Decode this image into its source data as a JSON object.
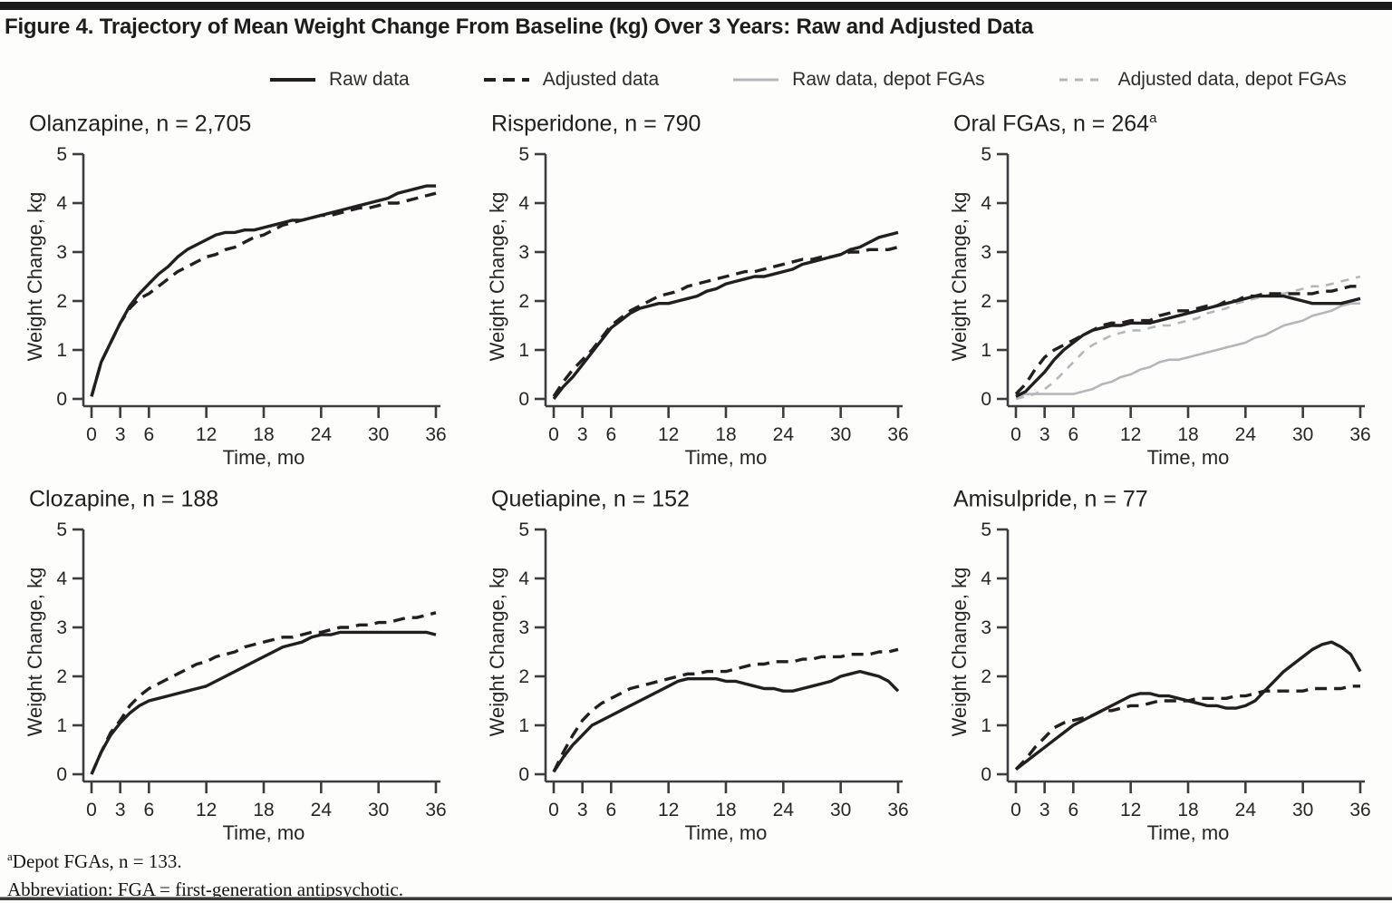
{
  "page": {
    "title": "Figure 4. Trajectory of Mean Weight Change From Baseline (kg) Over 3 Years: Raw and Adjusted Data",
    "footnotes": [
      {
        "sup": "a",
        "text": "Depot FGAs, n = 133."
      },
      {
        "sup": "",
        "text": "Abbreviation: FGA = first-generation antipsychotic."
      }
    ]
  },
  "colors": {
    "line_black": "#231f20",
    "line_gray": "#b4b7b9",
    "axis": "#3c3d3f"
  },
  "legend": [
    {
      "label": "Raw data",
      "color": "#231f20",
      "dashed": false
    },
    {
      "label": "Adjusted data",
      "color": "#231f20",
      "dashed": true
    },
    {
      "label": "Raw data, depot FGAs",
      "color": "#b4b7b9",
      "dashed": false
    },
    {
      "label": "Adjusted data, depot FGAs",
      "color": "#b4b7b9",
      "dashed": true
    }
  ],
  "chart_data": {
    "type": "line",
    "xlabel": "Time, mo",
    "ylabel": "Weight Change, kg",
    "xlim": [
      0,
      36
    ],
    "ylim": [
      0,
      5
    ],
    "xticks": [
      0,
      3,
      6,
      12,
      18,
      24,
      30,
      36
    ],
    "yticks": [
      0,
      1,
      2,
      3,
      4,
      5
    ],
    "grid": false,
    "x_months": [
      0,
      1,
      2,
      3,
      4,
      5,
      6,
      7,
      8,
      9,
      10,
      11,
      12,
      13,
      14,
      15,
      16,
      17,
      18,
      19,
      20,
      21,
      22,
      23,
      24,
      25,
      26,
      27,
      28,
      29,
      30,
      31,
      32,
      33,
      34,
      35,
      36
    ],
    "charts": [
      {
        "id": "olanzapine",
        "title": "Olanzapine, n = 2,705",
        "title_sup": "",
        "series": [
          {
            "name": "Raw data",
            "color": "#231f20",
            "dashed": false,
            "values": [
              0.05,
              0.75,
              1.15,
              1.55,
              1.9,
              2.15,
              2.35,
              2.55,
              2.7,
              2.9,
              3.05,
              3.15,
              3.25,
              3.35,
              3.4,
              3.4,
              3.45,
              3.45,
              3.5,
              3.55,
              3.6,
              3.65,
              3.65,
              3.7,
              3.75,
              3.8,
              3.85,
              3.9,
              3.95,
              4.0,
              4.05,
              4.1,
              4.2,
              4.25,
              4.3,
              4.35,
              4.35
            ]
          },
          {
            "name": "Adjusted data",
            "color": "#231f20",
            "dashed": true,
            "values": [
              0.05,
              0.75,
              1.15,
              1.55,
              1.85,
              2.05,
              2.15,
              2.3,
              2.45,
              2.6,
              2.7,
              2.8,
              2.9,
              2.95,
              3.05,
              3.1,
              3.2,
              3.3,
              3.35,
              3.45,
              3.55,
              3.6,
              3.65,
              3.7,
              3.75,
              3.75,
              3.8,
              3.85,
              3.9,
              3.9,
              3.95,
              4.0,
              4.0,
              4.05,
              4.1,
              4.15,
              4.2
            ]
          }
        ]
      },
      {
        "id": "risperidone",
        "title": "Risperidone, n = 790",
        "title_sup": "",
        "series": [
          {
            "name": "Raw data",
            "color": "#231f20",
            "dashed": false,
            "values": [
              0,
              0.25,
              0.45,
              0.7,
              0.95,
              1.2,
              1.45,
              1.6,
              1.75,
              1.85,
              1.9,
              1.95,
              1.95,
              2.0,
              2.05,
              2.1,
              2.2,
              2.25,
              2.35,
              2.4,
              2.45,
              2.5,
              2.5,
              2.55,
              2.6,
              2.65,
              2.75,
              2.8,
              2.85,
              2.9,
              2.95,
              3.05,
              3.1,
              3.2,
              3.3,
              3.35,
              3.4
            ]
          },
          {
            "name": "Adjusted data",
            "color": "#231f20",
            "dashed": true,
            "values": [
              0.05,
              0.35,
              0.6,
              0.8,
              1.0,
              1.25,
              1.5,
              1.65,
              1.8,
              1.9,
              2.0,
              2.1,
              2.15,
              2.2,
              2.3,
              2.35,
              2.4,
              2.45,
              2.5,
              2.55,
              2.6,
              2.6,
              2.65,
              2.7,
              2.75,
              2.8,
              2.85,
              2.85,
              2.9,
              2.9,
              2.95,
              3.0,
              3.0,
              3.05,
              3.05,
              3.05,
              3.1
            ]
          }
        ]
      },
      {
        "id": "oral-fgas",
        "title": "Oral FGAs, n = 264",
        "title_sup": "a",
        "series": [
          {
            "name": "Raw data",
            "color": "#231f20",
            "dashed": false,
            "values": [
              0.05,
              0.15,
              0.35,
              0.55,
              0.8,
              1.0,
              1.15,
              1.3,
              1.4,
              1.45,
              1.5,
              1.5,
              1.55,
              1.55,
              1.55,
              1.6,
              1.65,
              1.7,
              1.75,
              1.8,
              1.85,
              1.9,
              1.95,
              2.0,
              2.05,
              2.1,
              2.1,
              2.1,
              2.1,
              2.05,
              2.0,
              1.95,
              1.95,
              1.95,
              1.95,
              2.0,
              2.05
            ]
          },
          {
            "name": "Adjusted data",
            "color": "#231f20",
            "dashed": true,
            "values": [
              0.1,
              0.3,
              0.6,
              0.85,
              1.0,
              1.1,
              1.2,
              1.3,
              1.4,
              1.5,
              1.55,
              1.55,
              1.6,
              1.6,
              1.6,
              1.7,
              1.75,
              1.8,
              1.8,
              1.85,
              1.9,
              1.9,
              2.0,
              2.0,
              2.1,
              2.1,
              2.15,
              2.15,
              2.15,
              2.15,
              2.15,
              2.15,
              2.2,
              2.2,
              2.25,
              2.3,
              2.3
            ]
          },
          {
            "name": "Raw data, depot FGAs",
            "color": "#b4b7b9",
            "dashed": false,
            "values": [
              0.05,
              0.1,
              0.1,
              0.1,
              0.1,
              0.1,
              0.1,
              0.15,
              0.2,
              0.3,
              0.35,
              0.45,
              0.5,
              0.6,
              0.65,
              0.75,
              0.8,
              0.8,
              0.85,
              0.9,
              0.95,
              1.0,
              1.05,
              1.1,
              1.15,
              1.25,
              1.3,
              1.4,
              1.5,
              1.55,
              1.6,
              1.7,
              1.75,
              1.8,
              1.9,
              1.95,
              1.95
            ]
          },
          {
            "name": "Adjusted data, depot FGAs",
            "color": "#b4b7b9",
            "dashed": true,
            "values": [
              0,
              0.05,
              0.1,
              0.2,
              0.35,
              0.55,
              0.75,
              0.95,
              1.1,
              1.2,
              1.3,
              1.35,
              1.4,
              1.4,
              1.45,
              1.5,
              1.5,
              1.55,
              1.6,
              1.65,
              1.75,
              1.8,
              1.85,
              1.95,
              2.0,
              2.05,
              2.1,
              2.15,
              2.15,
              2.2,
              2.25,
              2.3,
              2.3,
              2.35,
              2.4,
              2.45,
              2.5
            ]
          }
        ]
      },
      {
        "id": "clozapine",
        "title": "Clozapine, n = 188",
        "title_sup": "",
        "series": [
          {
            "name": "Raw data",
            "color": "#231f20",
            "dashed": false,
            "values": [
              0,
              0.45,
              0.8,
              1.05,
              1.25,
              1.4,
              1.5,
              1.55,
              1.6,
              1.65,
              1.7,
              1.75,
              1.8,
              1.9,
              2.0,
              2.1,
              2.2,
              2.3,
              2.4,
              2.5,
              2.6,
              2.65,
              2.7,
              2.8,
              2.85,
              2.85,
              2.9,
              2.9,
              2.9,
              2.9,
              2.9,
              2.9,
              2.9,
              2.9,
              2.9,
              2.9,
              2.85
            ]
          },
          {
            "name": "Adjusted data",
            "color": "#231f20",
            "dashed": true,
            "values": [
              0,
              0.45,
              0.85,
              1.1,
              1.4,
              1.6,
              1.75,
              1.85,
              1.95,
              2.05,
              2.15,
              2.25,
              2.3,
              2.4,
              2.45,
              2.5,
              2.6,
              2.65,
              2.7,
              2.75,
              2.8,
              2.8,
              2.85,
              2.9,
              2.9,
              2.95,
              3.0,
              3.0,
              3.05,
              3.05,
              3.1,
              3.1,
              3.15,
              3.2,
              3.2,
              3.25,
              3.3
            ]
          }
        ]
      },
      {
        "id": "quetiapine",
        "title": "Quetiapine, n = 152",
        "title_sup": "",
        "series": [
          {
            "name": "Raw data",
            "color": "#231f20",
            "dashed": false,
            "values": [
              0.05,
              0.35,
              0.6,
              0.8,
              1.0,
              1.1,
              1.2,
              1.3,
              1.4,
              1.5,
              1.6,
              1.7,
              1.8,
              1.9,
              1.95,
              1.95,
              1.95,
              1.95,
              1.9,
              1.9,
              1.85,
              1.8,
              1.75,
              1.75,
              1.7,
              1.7,
              1.75,
              1.8,
              1.85,
              1.9,
              2.0,
              2.05,
              2.1,
              2.05,
              2.0,
              1.9,
              1.7
            ]
          },
          {
            "name": "Adjusted data",
            "color": "#231f20",
            "dashed": true,
            "values": [
              0.05,
              0.45,
              0.8,
              1.1,
              1.3,
              1.45,
              1.55,
              1.65,
              1.75,
              1.8,
              1.85,
              1.9,
              1.95,
              2.0,
              2.05,
              2.05,
              2.1,
              2.1,
              2.1,
              2.15,
              2.2,
              2.25,
              2.25,
              2.3,
              2.3,
              2.3,
              2.35,
              2.35,
              2.4,
              2.4,
              2.4,
              2.45,
              2.45,
              2.45,
              2.5,
              2.5,
              2.55
            ]
          }
        ]
      },
      {
        "id": "amisulpride",
        "title": "Amisulpride, n = 77",
        "title_sup": "",
        "series": [
          {
            "name": "Raw data",
            "color": "#231f20",
            "dashed": false,
            "values": [
              0.1,
              0.25,
              0.4,
              0.55,
              0.7,
              0.85,
              1.0,
              1.1,
              1.2,
              1.3,
              1.4,
              1.5,
              1.6,
              1.65,
              1.65,
              1.6,
              1.6,
              1.55,
              1.5,
              1.45,
              1.4,
              1.4,
              1.35,
              1.35,
              1.4,
              1.5,
              1.7,
              1.9,
              2.1,
              2.25,
              2.4,
              2.55,
              2.65,
              2.7,
              2.6,
              2.45,
              2.1
            ]
          },
          {
            "name": "Adjusted data",
            "color": "#231f20",
            "dashed": true,
            "values": [
              0.1,
              0.3,
              0.55,
              0.75,
              0.95,
              1.05,
              1.1,
              1.15,
              1.2,
              1.3,
              1.3,
              1.35,
              1.4,
              1.4,
              1.45,
              1.5,
              1.5,
              1.5,
              1.5,
              1.55,
              1.55,
              1.55,
              1.55,
              1.6,
              1.6,
              1.65,
              1.7,
              1.7,
              1.7,
              1.7,
              1.7,
              1.75,
              1.75,
              1.75,
              1.75,
              1.8,
              1.8
            ]
          }
        ]
      }
    ]
  }
}
